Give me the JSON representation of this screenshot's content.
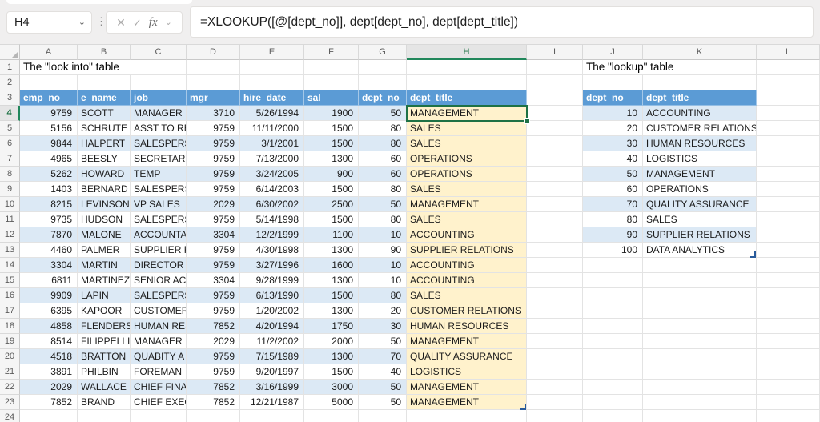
{
  "formula_bar": {
    "cell_reference": "H4",
    "formula": "=XLOOKUP([@[dept_no]], dept[dept_no], dept[dept_title])",
    "icons": {
      "name_box_dropdown": "⌄",
      "more": "⋮",
      "cancel": "✕",
      "enter": "✓",
      "fx": "fx",
      "fx_dropdown": "⌄"
    }
  },
  "sheet": {
    "columns": [
      "A",
      "B",
      "C",
      "D",
      "E",
      "F",
      "G",
      "H",
      "I",
      "J",
      "K",
      "L"
    ],
    "row_count": 24,
    "active_column": "H",
    "active_row": 4
  },
  "left_table": {
    "title": "The \"look into\" table",
    "headers": [
      "emp_no",
      "e_name",
      "job",
      "mgr",
      "hire_date",
      "sal",
      "dept_no",
      "dept_title"
    ],
    "rows": [
      [
        "9759",
        "SCOTT",
        "MANAGER",
        "3710",
        "5/26/1994",
        "1900",
        "50",
        "MANAGEMENT"
      ],
      [
        "5156",
        "SCHRUTE",
        "ASST TO RE",
        "9759",
        "11/11/2000",
        "1500",
        "80",
        "SALES"
      ],
      [
        "9844",
        "HALPERT",
        "SALESPERSO",
        "9759",
        "3/1/2001",
        "1500",
        "80",
        "SALES"
      ],
      [
        "4965",
        "BEESLY",
        "SECRETARY",
        "9759",
        "7/13/2000",
        "1300",
        "60",
        "OPERATIONS"
      ],
      [
        "5262",
        "HOWARD",
        "TEMP",
        "9759",
        "3/24/2005",
        "900",
        "60",
        "OPERATIONS"
      ],
      [
        "1403",
        "BERNARD",
        "SALESPERSO",
        "9759",
        "6/14/2003",
        "1500",
        "80",
        "SALES"
      ],
      [
        "8215",
        "LEVINSON",
        "VP SALES",
        "2029",
        "6/30/2002",
        "2500",
        "50",
        "MANAGEMENT"
      ],
      [
        "9735",
        "HUDSON",
        "SALESPERSO",
        "9759",
        "5/14/1998",
        "1500",
        "80",
        "SALES"
      ],
      [
        "7870",
        "MALONE",
        "ACCOUNTAN",
        "3304",
        "12/2/1999",
        "1100",
        "10",
        "ACCOUNTING"
      ],
      [
        "4460",
        "PALMER",
        "SUPPLIER R",
        "9759",
        "4/30/1998",
        "1300",
        "90",
        "SUPPLIER RELATIONS"
      ],
      [
        "3304",
        "MARTIN",
        "DIRECTOR A",
        "9759",
        "3/27/1996",
        "1600",
        "10",
        "ACCOUNTING"
      ],
      [
        "6811",
        "MARTINEZ",
        "SENIOR ACC",
        "3304",
        "9/28/1999",
        "1300",
        "10",
        "ACCOUNTING"
      ],
      [
        "9909",
        "LAPIN",
        "SALESPERSO",
        "9759",
        "6/13/1990",
        "1500",
        "80",
        "SALES"
      ],
      [
        "6395",
        "KAPOOR",
        "CUSTOMER R",
        "9759",
        "1/20/2002",
        "1300",
        "20",
        "CUSTOMER RELATIONS"
      ],
      [
        "4858",
        "FLENDERSON",
        "HUMAN RES",
        "7852",
        "4/20/1994",
        "1750",
        "30",
        "HUMAN RESOURCES"
      ],
      [
        "8514",
        "FILIPPELLI",
        "MANAGER",
        "2029",
        "11/2/2002",
        "2000",
        "50",
        "MANAGEMENT"
      ],
      [
        "4518",
        "BRATTON",
        "QUABITY A",
        "9759",
        "7/15/1989",
        "1300",
        "70",
        "QUALITY ASSURANCE"
      ],
      [
        "3891",
        "PHILBIN",
        "FOREMAN",
        "9759",
        "9/20/1997",
        "1500",
        "40",
        "LOGISTICS"
      ],
      [
        "2029",
        "WALLACE",
        "CHIEF FINA",
        "7852",
        "3/16/1999",
        "3000",
        "50",
        "MANAGEMENT"
      ],
      [
        "7852",
        "BRAND",
        "CHIEF EXEC",
        "7852",
        "12/21/1987",
        "5000",
        "50",
        "MANAGEMENT"
      ]
    ]
  },
  "right_table": {
    "title": "The \"lookup\" table",
    "headers": [
      "dept_no",
      "dept_title"
    ],
    "rows": [
      [
        "10",
        "ACCOUNTING"
      ],
      [
        "20",
        "CUSTOMER RELATIONS"
      ],
      [
        "30",
        "HUMAN RESOURCES"
      ],
      [
        "40",
        "LOGISTICS"
      ],
      [
        "50",
        "MANAGEMENT"
      ],
      [
        "60",
        "OPERATIONS"
      ],
      [
        "70",
        "QUALITY ASSURANCE"
      ],
      [
        "80",
        "SALES"
      ],
      [
        "90",
        "SUPPLIER RELATIONS"
      ],
      [
        "100",
        "DATA ANALYTICS"
      ]
    ]
  },
  "colors": {
    "table_header": "#5B9BD5",
    "banded_row": "#DCE9F5",
    "lookup_column_fill": "#FFF2CC",
    "active_cell_border": "#1E7145",
    "header_accent_green": "#21875B",
    "table_resize_handle": "#295B9B"
  }
}
